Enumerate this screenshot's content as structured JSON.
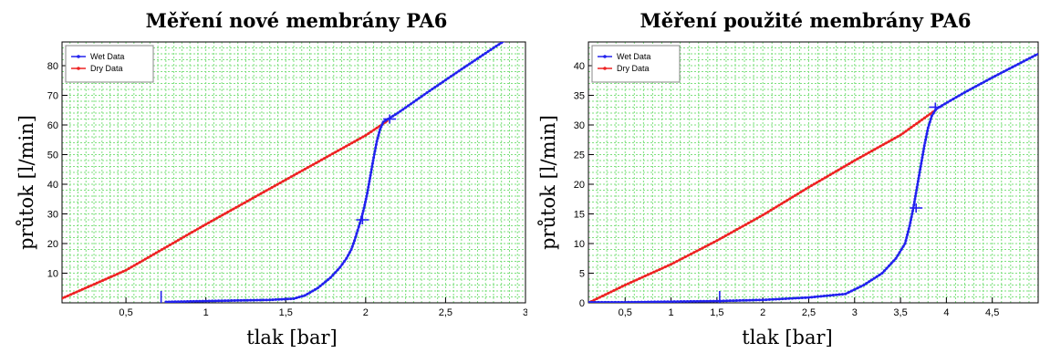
{
  "chart_data": [
    {
      "type": "line",
      "title": "Měření nové membrány PA6",
      "xlabel": "tlak [bar]",
      "ylabel": "průtok [l/min]",
      "xlim": [
        0.1,
        3.0
      ],
      "ylim": [
        0,
        88
      ],
      "x_ticks": [
        0.5,
        1,
        1.5,
        2,
        2.5,
        3
      ],
      "x_tick_labels": [
        "0,5",
        "1",
        "1,5",
        "2",
        "2,5",
        "3"
      ],
      "y_ticks": [
        10,
        20,
        30,
        40,
        50,
        60,
        70,
        80
      ],
      "y_tick_labels": [
        "10",
        "20",
        "30",
        "40",
        "50",
        "60",
        "70",
        "80"
      ],
      "grid": true,
      "legend_position": "top-left",
      "series": [
        {
          "name": "Wet Data",
          "color": "#2222ee",
          "x": [
            0.75,
            1.0,
            1.2,
            1.4,
            1.55,
            1.62,
            1.7,
            1.78,
            1.84,
            1.88,
            1.91,
            1.93,
            1.95,
            1.97,
            1.99,
            2.01,
            2.03,
            2.05,
            2.07,
            2.09,
            2.11,
            2.14,
            2.2,
            2.4,
            2.6,
            2.8,
            3.0
          ],
          "y": [
            0.3,
            0.6,
            0.8,
            1.0,
            1.4,
            2.5,
            5.0,
            8.5,
            12.0,
            15.0,
            18.0,
            21.0,
            24.5,
            28.0,
            32.0,
            37.0,
            43.0,
            49.0,
            54.5,
            58.5,
            61.0,
            62.0,
            64.0,
            71.5,
            78.8,
            86.0,
            93.0
          ]
        },
        {
          "name": "Dry Data",
          "color": "#ee2222",
          "x": [
            0.1,
            0.5,
            1.0,
            1.5,
            2.0,
            2.14
          ],
          "y": [
            1.5,
            11.0,
            26.5,
            41.5,
            56.5,
            61.5
          ]
        }
      ],
      "annotations": [
        {
          "x": 0.72,
          "y": 4.0,
          "kind": "vertical-tick"
        },
        {
          "x": 1.98,
          "y": 28.0,
          "kind": "cross"
        },
        {
          "x": 2.15,
          "y": 62.0,
          "kind": "cross"
        }
      ]
    },
    {
      "type": "line",
      "title": "Měření použité membrány PA6",
      "xlabel": "tlak [bar]",
      "ylabel": "průtok [l/min]",
      "xlim": [
        0.1,
        5.0
      ],
      "ylim": [
        0,
        44
      ],
      "x_ticks": [
        0.5,
        1,
        1.5,
        2,
        2.5,
        3,
        3.5,
        4,
        4.5
      ],
      "x_tick_labels": [
        "0,5",
        "1",
        "1,5",
        "2",
        "2,5",
        "3",
        "3,5",
        "4",
        "4,5"
      ],
      "y_ticks": [
        0,
        5,
        10,
        15,
        20,
        25,
        30,
        35,
        40
      ],
      "y_tick_labels": [
        "0",
        "5",
        "10",
        "15",
        "20",
        "25",
        "30",
        "35",
        "40"
      ],
      "grid": true,
      "legend_position": "top-left",
      "series": [
        {
          "name": "Wet Data",
          "color": "#2222ee",
          "x": [
            0.1,
            0.5,
            1.0,
            1.5,
            2.0,
            2.5,
            2.9,
            3.1,
            3.3,
            3.45,
            3.55,
            3.6,
            3.64,
            3.68,
            3.72,
            3.76,
            3.8,
            3.84,
            3.88,
            3.92,
            4.2,
            4.5,
            5.0
          ],
          "y": [
            0.1,
            0.1,
            0.2,
            0.3,
            0.5,
            0.9,
            1.5,
            3.0,
            5.0,
            7.5,
            10.0,
            13.0,
            16.0,
            19.5,
            23.0,
            26.5,
            29.5,
            31.5,
            32.5,
            33.0,
            35.5,
            38.0,
            42.0
          ]
        },
        {
          "name": "Dry Data",
          "color": "#ee2222",
          "x": [
            0.1,
            0.5,
            1.0,
            1.5,
            2.0,
            2.5,
            3.0,
            3.5,
            3.88
          ],
          "y": [
            0.0,
            3.0,
            6.5,
            10.5,
            14.8,
            19.5,
            24.0,
            28.3,
            32.5
          ]
        }
      ],
      "annotations": [
        {
          "x": 1.53,
          "y": 2.0,
          "kind": "vertical-tick"
        },
        {
          "x": 3.67,
          "y": 16.0,
          "kind": "cross"
        },
        {
          "x": 3.88,
          "y": 33.0,
          "kind": "cross"
        }
      ]
    }
  ]
}
